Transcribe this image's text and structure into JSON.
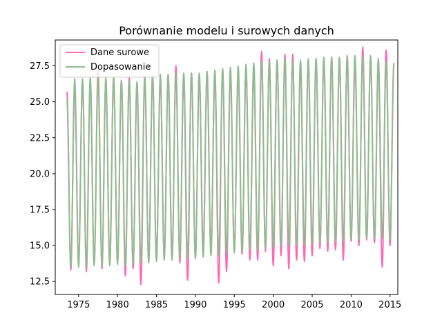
{
  "chart_data": {
    "type": "line",
    "title": "Porównanie modelu i surowych danych",
    "xlabel": "",
    "ylabel": "",
    "xlim": [
      1972.0,
      2016.0
    ],
    "ylim": [
      11.6,
      29.3
    ],
    "x_ticks": [
      1975,
      1980,
      1985,
      1990,
      1995,
      2000,
      2005,
      2010,
      2015
    ],
    "y_ticks": [
      12.5,
      15.0,
      17.5,
      20.0,
      22.5,
      25.0,
      27.5
    ],
    "y_tick_labels": [
      "12.5",
      "15.0",
      "17.5",
      "20.0",
      "22.5",
      "25.0",
      "27.5"
    ],
    "grid": false,
    "legend_position": "top-left",
    "sampling": "one value per 0.5 year, first point at 1973.5 (summer peak), alternating summer maximum / winter minimum",
    "series": [
      {
        "name": "Dane surowe",
        "color": "#ff69b4",
        "start_x": 1973.5,
        "step": 0.5,
        "values": [
          25.7,
          13.3,
          26.2,
          13.8,
          26.5,
          13.2,
          26.4,
          13.7,
          27.2,
          13.4,
          26.5,
          13.9,
          26.7,
          13.8,
          26.5,
          12.9,
          26.7,
          13.4,
          26.3,
          12.3,
          26.7,
          13.9,
          26.9,
          14.1,
          26.6,
          14.2,
          26.9,
          14.2,
          27.5,
          13.8,
          26.8,
          12.6,
          27.0,
          14.1,
          26.9,
          14.8,
          27.1,
          14.6,
          26.9,
          12.4,
          27.3,
          13.2,
          27.0,
          14.7,
          27.1,
          14.4,
          27.2,
          14.0,
          27.3,
          14.0,
          28.5,
          14.6,
          28.0,
          13.6,
          27.9,
          14.3,
          28.3,
          13.4,
          28.3,
          14.0,
          27.6,
          13.9,
          27.9,
          14.3,
          28.0,
          14.8,
          27.9,
          14.6,
          28.1,
          14.7,
          28.1,
          14.0,
          28.2,
          15.3,
          27.7,
          15.0,
          28.8,
          15.4,
          28.2,
          15.2,
          27.7,
          13.5,
          28.6,
          15.0,
          27.6
        ]
      },
      {
        "name": "Dopasowanie",
        "color": "#8fbc8f",
        "start_x": 1973.5,
        "step": 0.5,
        "values": [
          25.2,
          13.5,
          26.6,
          13.5,
          26.6,
          13.5,
          26.7,
          13.6,
          26.7,
          13.6,
          26.7,
          13.6,
          26.7,
          13.7,
          26.5,
          13.6,
          26.5,
          13.7,
          26.4,
          13.8,
          26.8,
          13.8,
          26.9,
          13.9,
          26.9,
          14.0,
          26.9,
          14.0,
          27.0,
          14.1,
          27.0,
          14.1,
          27.0,
          14.1,
          27.0,
          14.2,
          27.1,
          14.3,
          27.2,
          14.3,
          27.3,
          14.4,
          27.4,
          14.5,
          27.5,
          14.6,
          27.6,
          14.7,
          27.7,
          14.7,
          27.8,
          14.8,
          27.8,
          14.9,
          27.9,
          15.0,
          28.0,
          15.0,
          27.8,
          15.0,
          27.9,
          15.0,
          28.0,
          15.1,
          28.0,
          15.2,
          28.1,
          15.2,
          28.1,
          15.3,
          28.1,
          15.3,
          28.1,
          15.4,
          28.2,
          15.4,
          28.2,
          15.5,
          28.2,
          15.5,
          28.0,
          15.5,
          27.8,
          15.4,
          27.7
        ]
      }
    ]
  }
}
